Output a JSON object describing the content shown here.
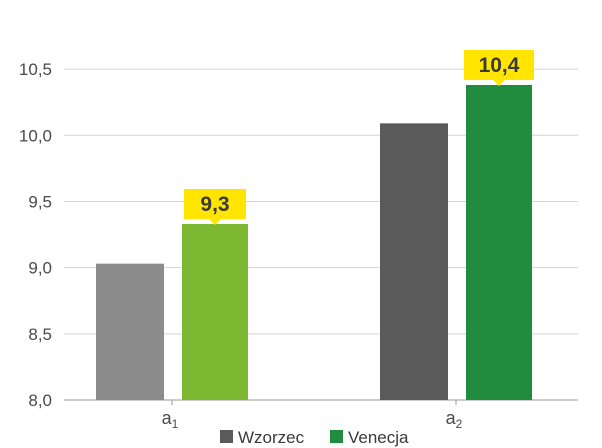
{
  "chart_data": {
    "type": "bar",
    "categories": [
      {
        "base": "a",
        "sub": "1"
      },
      {
        "base": "a",
        "sub": "2"
      }
    ],
    "series": [
      {
        "name": "Wzorzec",
        "values": [
          9.03,
          10.09
        ],
        "colors": [
          "#8c8c8c",
          "#5a5a5a"
        ]
      },
      {
        "name": "Venecja",
        "values": [
          9.33,
          10.38
        ],
        "colors": [
          "#7cb832",
          "#218c3d"
        ]
      }
    ],
    "callouts": [
      {
        "series": 1,
        "category": 0,
        "text": "9,3"
      },
      {
        "series": 1,
        "category": 1,
        "text": "10,4"
      }
    ],
    "callout_color": "#ffe500",
    "ylim": [
      8.0,
      10.75
    ],
    "yticks": [
      {
        "value": 8.0,
        "label": "8,0"
      },
      {
        "value": 8.5,
        "label": "8,5"
      },
      {
        "value": 9.0,
        "label": "9,0"
      },
      {
        "value": 9.5,
        "label": "9,5"
      },
      {
        "value": 10.0,
        "label": "10,0"
      },
      {
        "value": 10.5,
        "label": "10,5"
      }
    ],
    "grid": true,
    "legend_position": "bottom",
    "legend_colors": [
      "#5a5a5a",
      "#218c3d"
    ]
  }
}
